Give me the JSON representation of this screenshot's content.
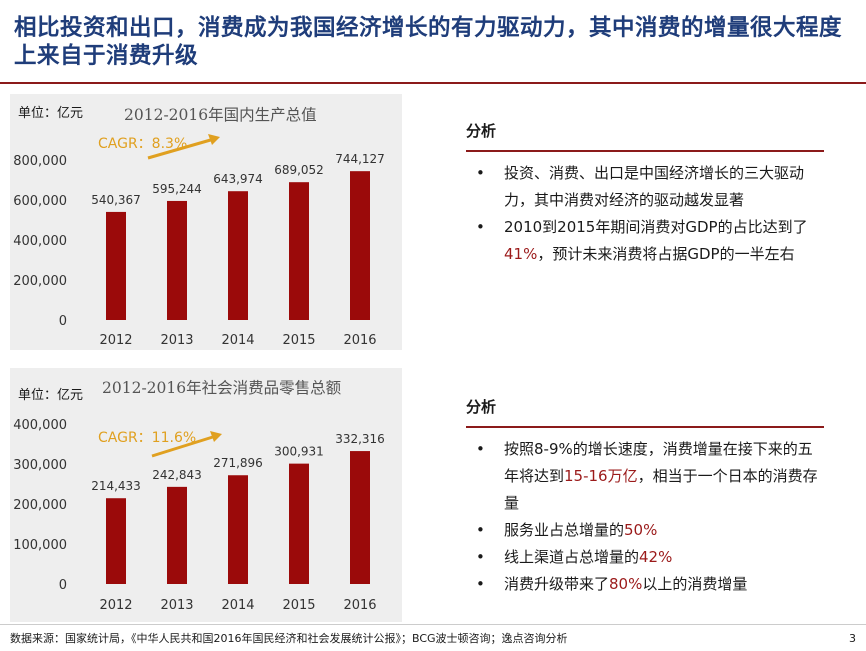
{
  "title": "相比投资和出口，消费成为我国经济增长的有力驱动力，其中消费的增量很大程度上来自于消费升级",
  "chart_data": [
    {
      "type": "bar",
      "title": "2012-2016年国内生产总值",
      "unit_label": "单位：亿元",
      "categories": [
        "2012",
        "2013",
        "2014",
        "2015",
        "2016"
      ],
      "values": [
        540367,
        595244,
        643974,
        689052,
        744127
      ],
      "value_labels": [
        "540,367",
        "595,244",
        "643,974",
        "689,052",
        "744,127"
      ],
      "yticks": [
        "0",
        "200,000",
        "400,000",
        "600,000",
        "800,000"
      ],
      "ylim": [
        0,
        800000
      ],
      "annotation": "CAGR：8.3%",
      "bar_color": "#9b0a0a",
      "annotation_color": "#e0a020"
    },
    {
      "type": "bar",
      "title": "2012-2016年社会消费品零售总额",
      "unit_label": "单位：亿元",
      "categories": [
        "2012",
        "2013",
        "2014",
        "2015",
        "2016"
      ],
      "values": [
        214433,
        242843,
        271896,
        300931,
        332316
      ],
      "value_labels": [
        "214,433",
        "242,843",
        "271,896",
        "300,931",
        "332,316"
      ],
      "yticks": [
        "0",
        "100,000",
        "200,000",
        "300,000",
        "400,000"
      ],
      "ylim": [
        0,
        400000
      ],
      "annotation": "CAGR：11.6%",
      "bar_color": "#9b0a0a",
      "annotation_color": "#e0a020"
    }
  ],
  "analysis": [
    {
      "heading": "分析",
      "bullets": [
        [
          {
            "t": "投资、消费、出口是中国经济增长的三大驱动力，其中消费对经济的驱动越发显著"
          }
        ],
        [
          {
            "t": "2010到2015年期间消费对GDP的占比达到了"
          },
          {
            "t": "41%",
            "hl": true
          },
          {
            "t": "，预计未来消费将占据GDP的一半左右"
          }
        ]
      ]
    },
    {
      "heading": "分析",
      "bullets": [
        [
          {
            "t": "按照8-9%的增长速度，消费增量在接下来的五年将达到"
          },
          {
            "t": "15-16万亿",
            "hl": true
          },
          {
            "t": "，相当于一个日本的消费存量"
          }
        ],
        [
          {
            "t": "服务业占总增量的"
          },
          {
            "t": "50%",
            "hl": true
          }
        ],
        [
          {
            "t": "线上渠道占总增量的"
          },
          {
            "t": "42%",
            "hl": true
          }
        ],
        [
          {
            "t": "消费升级带来了"
          },
          {
            "t": "80%",
            "hl": true
          },
          {
            "t": "以上的消费增量"
          }
        ]
      ]
    }
  ],
  "bullet_glyph": "•",
  "footer": "数据来源：国家统计局，《中华人民共和国2016年国民经济和社会发展统计公报》；BCG波士顿咨询；逸点咨询分析",
  "page_number": "3"
}
